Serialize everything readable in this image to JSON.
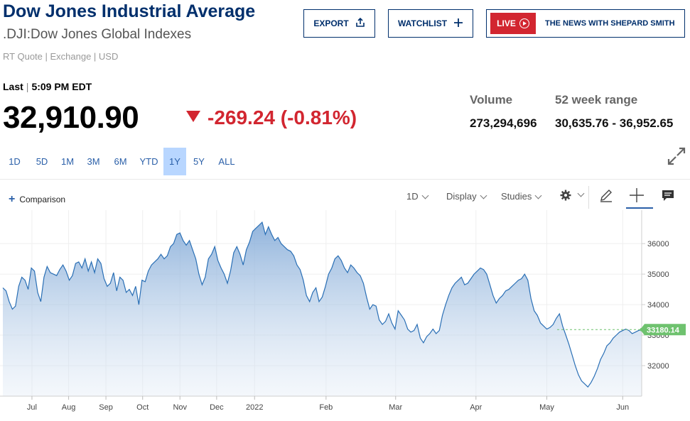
{
  "header": {
    "title": "Dow Jones Industrial Average",
    "subtitle": ".DJI:Dow Jones Global Indexes",
    "quote_type": "RT Quote | Exchange | USD"
  },
  "buttons": {
    "export": "EXPORT",
    "watchlist": "WATCHLIST",
    "live": "LIVE",
    "show": "THE NEWS WITH SHEPARD SMITH"
  },
  "icons": {
    "export": "share-upload-icon",
    "watchlist": "plus-icon",
    "live": "play-circle-icon",
    "expand": "expand-arrows-icon",
    "settings": "gear-icon",
    "draw": "pencil-icon",
    "crosshair": "crosshair-icon",
    "comment": "comment-icon"
  },
  "quote": {
    "last_label": "Last",
    "time": "5:09 PM EDT",
    "price": "32,910.90",
    "change": "-269.24 (-0.81%)",
    "change_color": "#d22630",
    "volume_label": "Volume",
    "volume": "273,294,696",
    "range_label": "52 week range",
    "range": "30,635.76 - 36,952.65"
  },
  "range_tabs": [
    "1D",
    "5D",
    "1M",
    "3M",
    "6M",
    "YTD",
    "1Y",
    "5Y",
    "ALL"
  ],
  "active_range": "1Y",
  "toolbar": {
    "comparison": "Comparison",
    "interval": "1D",
    "display": "Display",
    "studies": "Studies"
  },
  "chart_data": {
    "type": "area",
    "accent": "#2a6fb5",
    "y_ticks": [
      32000,
      33000,
      34000,
      35000,
      36000
    ],
    "y_tick_labels": [
      "32000",
      "33000",
      "34000",
      "35000",
      "36000"
    ],
    "ylim": [
      31000,
      37050
    ],
    "x_tick_labels": [
      "Jul",
      "Aug",
      "Sep",
      "Oct",
      "Nov",
      "Dec",
      "2022",
      "Feb",
      "Mar",
      "Apr",
      "May",
      "Jun"
    ],
    "x_tick_positions": [
      9.2,
      20.8,
      32.6,
      44.2,
      56.0,
      67.6,
      79.6,
      102.2,
      124.2,
      149.6,
      172.0,
      196.0
    ],
    "last_value_label": "33180.14",
    "last_value": 33180.14,
    "x_range": [
      0,
      202
    ],
    "x": [
      0,
      1,
      2,
      3,
      4,
      5,
      6,
      7,
      8,
      9,
      10,
      11,
      12,
      13,
      14,
      15,
      16,
      17,
      18,
      19,
      20,
      21,
      22,
      23,
      24,
      25,
      26,
      27,
      28,
      29,
      30,
      31,
      32,
      33,
      34,
      35,
      36,
      37,
      38,
      39,
      40,
      41,
      42,
      43,
      44,
      45,
      46,
      47,
      48,
      49,
      50,
      51,
      52,
      53,
      54,
      55,
      56,
      57,
      58,
      59,
      60,
      61,
      62,
      63,
      64,
      65,
      66,
      67,
      68,
      69,
      70,
      71,
      72,
      73,
      74,
      75,
      76,
      77,
      78,
      79,
      80,
      81,
      82,
      83,
      84,
      85,
      86,
      87,
      88,
      89,
      90,
      91,
      92,
      93,
      94,
      95,
      96,
      97,
      98,
      99,
      100,
      101,
      102,
      103,
      104,
      105,
      106,
      107,
      108,
      109,
      110,
      111,
      112,
      113,
      114,
      115,
      116,
      117,
      118,
      119,
      120,
      121,
      122,
      123,
      124,
      125,
      126,
      127,
      128,
      129,
      130,
      131,
      132,
      133,
      134,
      135,
      136,
      137,
      138,
      139,
      140,
      141,
      142,
      143,
      144,
      145,
      146,
      147,
      148,
      149,
      150,
      151,
      152,
      153,
      154,
      155,
      156,
      157,
      158,
      159,
      160,
      161,
      162,
      163,
      164,
      165,
      166,
      167,
      168,
      169,
      170,
      171,
      172,
      173,
      174,
      175,
      176,
      177,
      178,
      179,
      180,
      181,
      182,
      183,
      184,
      185,
      186,
      187,
      188,
      189,
      190,
      191,
      192,
      193,
      194,
      195,
      196,
      197,
      198,
      199,
      200,
      201,
      202
    ],
    "values": [
      34550,
      34450,
      34100,
      33850,
      33950,
      34600,
      34900,
      34800,
      34500,
      35200,
      35100,
      34400,
      34100,
      34900,
      35250,
      35050,
      35000,
      34950,
      35150,
      35300,
      35100,
      34800,
      34950,
      35350,
      35400,
      35200,
      35500,
      35100,
      35400,
      35050,
      35500,
      35350,
      34850,
      34600,
      34700,
      35050,
      34450,
      34900,
      34800,
      34400,
      34500,
      34300,
      34600,
      34000,
      34800,
      34750,
      35100,
      35300,
      35400,
      35500,
      35650,
      35500,
      35600,
      35900,
      36000,
      36300,
      36350,
      36100,
      35950,
      36100,
      35800,
      35500,
      35000,
      34650,
      34900,
      35500,
      35650,
      35900,
      35450,
      35200,
      35000,
      34700,
      35100,
      35700,
      35900,
      35650,
      35300,
      35800,
      36050,
      36400,
      36500,
      36600,
      36700,
      36300,
      36550,
      36300,
      36100,
      36200,
      36000,
      35900,
      35800,
      35750,
      35600,
      35300,
      35150,
      34800,
      34300,
      34100,
      34400,
      34550,
      34100,
      34250,
      34600,
      35000,
      35200,
      35500,
      35600,
      35450,
      35200,
      35050,
      35300,
      35200,
      35050,
      34950,
      34700,
      34250,
      33850,
      34000,
      33950,
      33500,
      33350,
      33450,
      33700,
      33400,
      33200,
      33800,
      33650,
      33500,
      33200,
      33100,
      33150,
      33350,
      32900,
      32750,
      32950,
      33050,
      33200,
      33050,
      33150,
      33650,
      34000,
      34300,
      34550,
      34700,
      34800,
      34900,
      34650,
      34700,
      34850,
      35000,
      35100,
      35200,
      35150,
      35000,
      34650,
      34300,
      34050,
      34200,
      34300,
      34450,
      34500,
      34600,
      34700,
      34800,
      34850,
      35000,
      34800,
      34200,
      33800,
      33650,
      33400,
      33300,
      33200,
      33250,
      33350,
      33550,
      33700,
      33300,
      33000,
      32700,
      32350,
      32000,
      31700,
      31500,
      31400,
      31300,
      31450,
      31650,
      31900,
      32200,
      32400,
      32650,
      32750,
      32900,
      33000,
      33100,
      33150,
      33200,
      33150,
      33050,
      33100,
      33150,
      33180
    ]
  }
}
